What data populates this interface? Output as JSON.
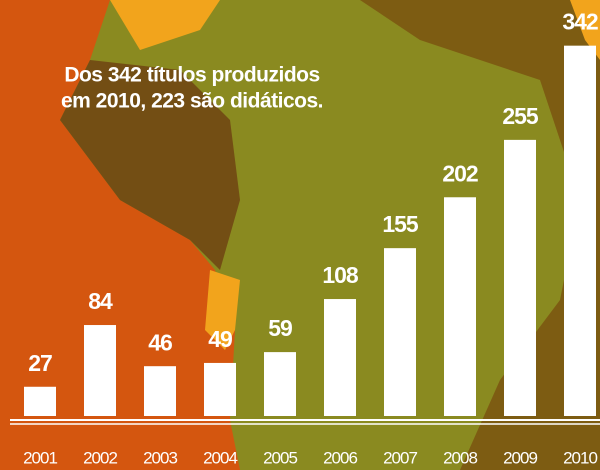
{
  "chart_data": {
    "type": "bar",
    "annotation": [
      "Dos 342 títulos produzidos",
      "em 2010, 223 são didáticos."
    ],
    "categories": [
      "2001",
      "2002",
      "2003",
      "2004",
      "2005",
      "2006",
      "2007",
      "2008",
      "2009",
      "2010"
    ],
    "values": [
      27,
      84,
      46,
      49,
      59,
      108,
      155,
      202,
      255,
      342
    ],
    "color": "#ffffff",
    "ylim": [
      0,
      350
    ]
  }
}
